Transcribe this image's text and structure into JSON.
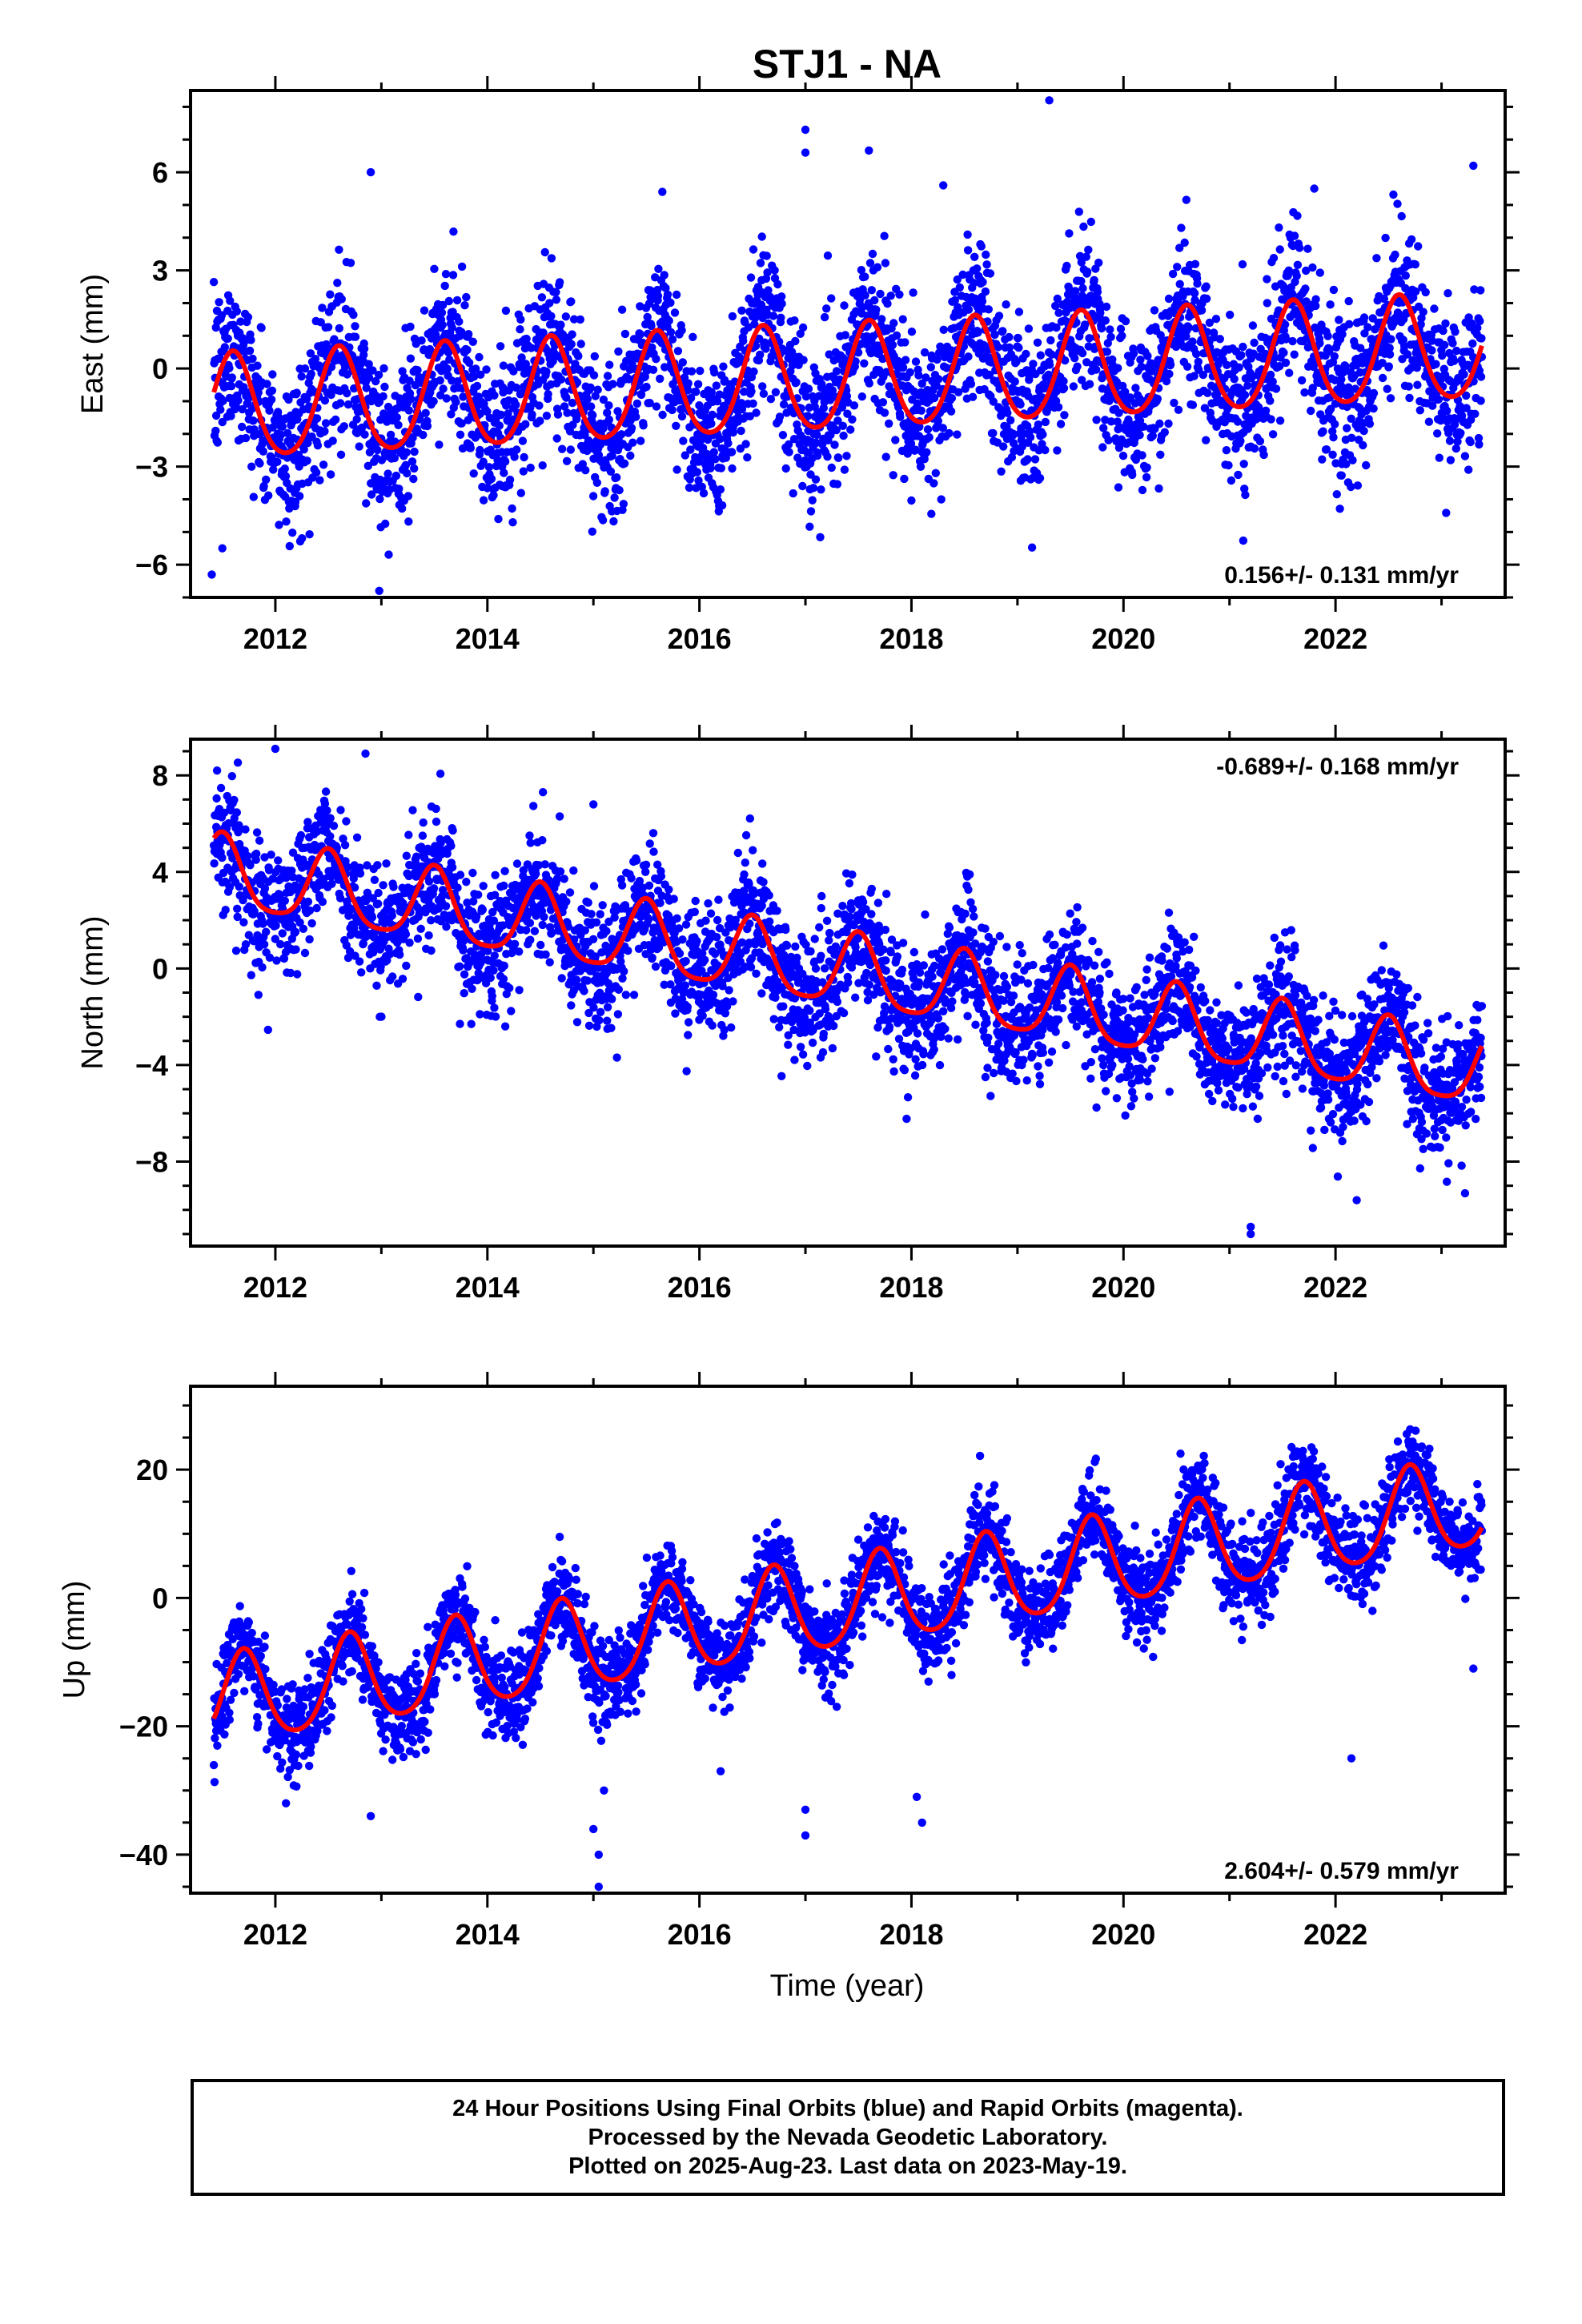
{
  "chart_data": {
    "title": "STJ1 - NA",
    "type": "scatter",
    "x_axis_label": "Time (year)",
    "x_range": [
      2011.2,
      2023.6
    ],
    "x_ticks": [
      2012,
      2014,
      2016,
      2018,
      2020,
      2022
    ],
    "colors": {
      "observations": "#0000ff",
      "model": "#ff0000",
      "frame": "#000000"
    },
    "panels": [
      {
        "name": "east",
        "ylabel": "East (mm)",
        "y_range": [
          -7.0,
          8.5
        ],
        "y_ticks": [
          6,
          3,
          0,
          -3,
          -6
        ],
        "y_tick_labels": [
          "6",
          "3",
          "0",
          "−3",
          "−6"
        ],
        "rate_text": "0.156+/- 0.131 mm/yr",
        "rate_position": "bottom-right",
        "trend_rate": 0.156,
        "model": {
          "t0": 2017.4,
          "offset": -0.35,
          "annual_amp": 1.6,
          "annual_phase_year": 0.6,
          "semi_amp": 0.2
        },
        "scatter_sd": 1.2,
        "outliers": [
          [
            2011.4,
            -6.3
          ],
          [
            2011.5,
            -5.5
          ],
          [
            2012.98,
            -6.8
          ],
          [
            2012.9,
            6.0
          ],
          [
            2017.0,
            7.3
          ],
          [
            2017.0,
            6.6
          ],
          [
            2019.3,
            8.2
          ],
          [
            2023.3,
            6.2
          ],
          [
            2015.65,
            5.4
          ],
          [
            2018.3,
            5.6
          ],
          [
            2021.8,
            5.5
          ]
        ]
      },
      {
        "name": "north",
        "ylabel": "North (mm)",
        "y_range": [
          -11.5,
          9.5
        ],
        "y_ticks": [
          8,
          4,
          0,
          -4,
          -8
        ],
        "y_tick_labels": [
          "8",
          "4",
          "0",
          "−4",
          "−8"
        ],
        "rate_text": "-0.689+/- 0.168 mm/yr",
        "rate_position": "top-right",
        "trend_rate": -0.689,
        "model": {
          "t0": 2017.4,
          "offset": -0.2,
          "annual_amp": 1.5,
          "annual_phase_year": 0.5,
          "semi_amp": 0.3
        },
        "scatter_sd": 1.3,
        "outliers": [
          [
            2011.45,
            8.2
          ],
          [
            2012.0,
            9.1
          ],
          [
            2012.85,
            8.9
          ],
          [
            2015.0,
            6.8
          ],
          [
            2021.2,
            -10.7
          ],
          [
            2021.2,
            -11.0
          ],
          [
            2022.2,
            -9.6
          ],
          [
            2013.0,
            -2.0
          ]
        ]
      },
      {
        "name": "up",
        "ylabel": "Up (mm)",
        "y_range": [
          -46,
          33
        ],
        "y_ticks": [
          20,
          0,
          -20,
          -40
        ],
        "y_tick_labels": [
          "20",
          "0",
          "−20",
          "−40"
        ],
        "rate_text": "2.604+/- 0.579 mm/yr",
        "rate_position": "bottom-right",
        "trend_rate": 2.604,
        "model": {
          "t0": 2017.4,
          "offset": -1.0,
          "annual_amp": 7.0,
          "annual_phase_year": 0.7,
          "semi_amp": 1.0
        },
        "scatter_sd": 3.5,
        "outliers": [
          [
            2015.05,
            -45
          ],
          [
            2015.05,
            -40
          ],
          [
            2015.0,
            -36
          ],
          [
            2015.1,
            -30
          ],
          [
            2012.1,
            -32
          ],
          [
            2012.9,
            -34
          ],
          [
            2016.2,
            -27
          ],
          [
            2017.0,
            -37
          ],
          [
            2017.0,
            -33
          ],
          [
            2018.05,
            -31
          ],
          [
            2018.1,
            -35
          ],
          [
            2022.15,
            -25
          ],
          [
            2023.3,
            -11
          ]
        ]
      }
    ]
  },
  "footer": {
    "line1": "24 Hour Positions Using Final Orbits (blue) and Rapid Orbits (magenta).",
    "line2": "Processed by the Nevada Geodetic Laboratory.",
    "line3": "Plotted on 2025-Aug-23. Last data on 2023-May-19."
  }
}
